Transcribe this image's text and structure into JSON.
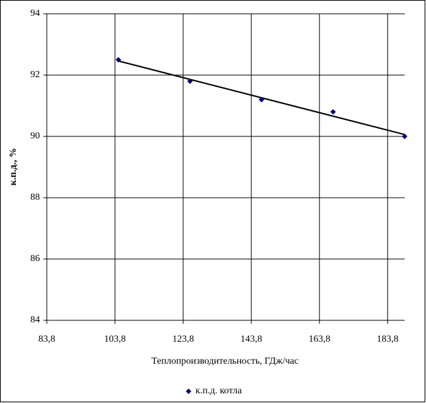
{
  "chart_data": {
    "type": "scatter",
    "x_label": "Теплопроизводительность, ГДж/час",
    "y_label": "к.п.д., %",
    "series": [
      {
        "name": "к.п.д. котла",
        "color": "#000080",
        "x": [
          104.8,
          125.8,
          146.8,
          167.8,
          188.8
        ],
        "values": [
          92.5,
          91.8,
          91.2,
          90.8,
          90.0
        ]
      }
    ],
    "trendline": "linear",
    "xlim": [
      83.8,
      188.8
    ],
    "xticks": [
      {
        "value": 83.8,
        "label": "83,8"
      },
      {
        "value": 103.8,
        "label": "103,8"
      },
      {
        "value": 123.8,
        "label": "123,8"
      },
      {
        "value": 143.8,
        "label": "143,8"
      },
      {
        "value": 163.8,
        "label": "163,8"
      },
      {
        "value": 183.8,
        "label": "183,8"
      }
    ],
    "ylim": [
      84,
      94
    ],
    "yticks": [
      84,
      86,
      88,
      90,
      92,
      94
    ],
    "grid": true,
    "legend": "bottom"
  }
}
